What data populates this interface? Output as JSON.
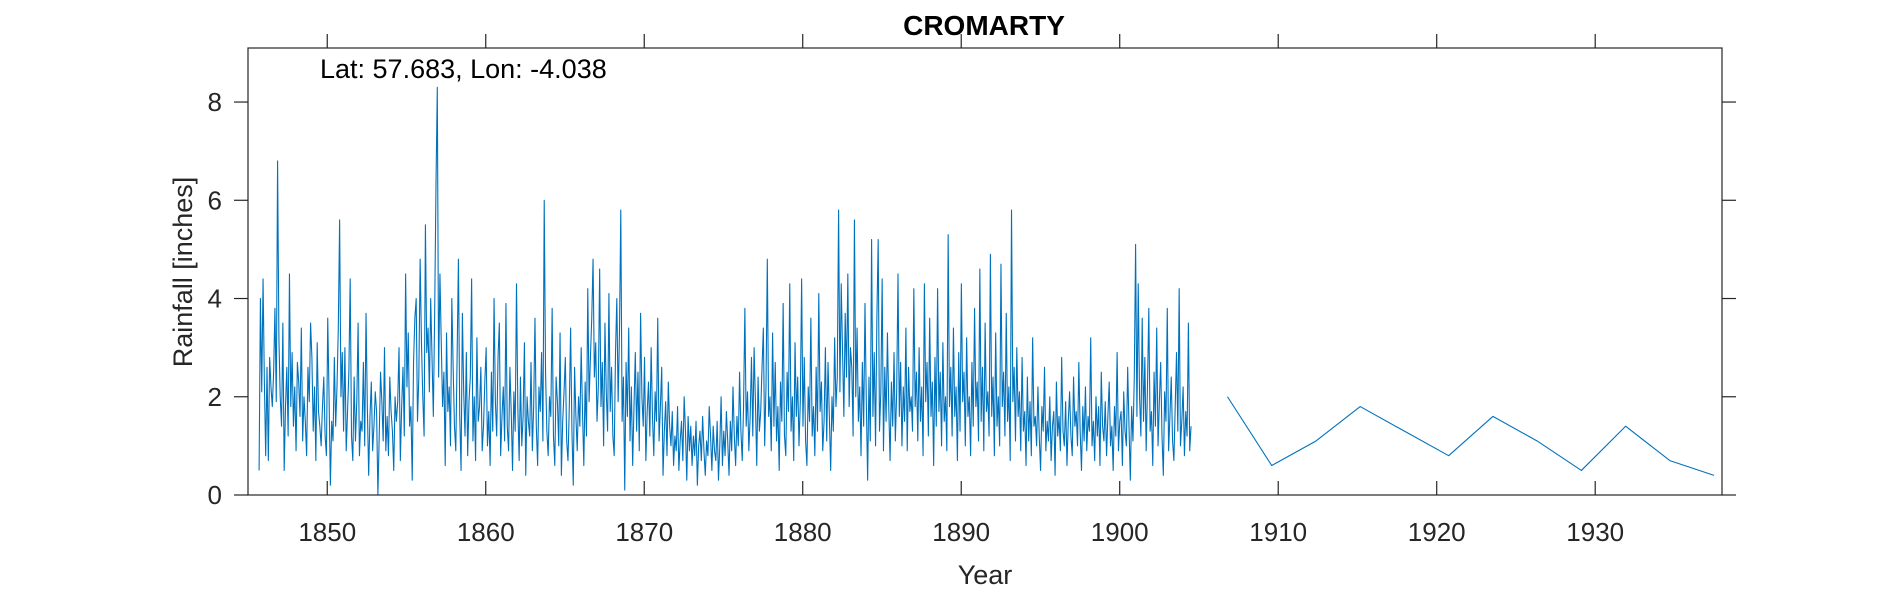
{
  "chart_data": {
    "type": "line",
    "title": "CROMARTY",
    "annotation": "Lat: 57.683, Lon: -4.038",
    "xlabel": "Year",
    "ylabel": "Rainfall [inches]",
    "xlim": [
      1845,
      1938
    ],
    "ylim": [
      0,
      9.1
    ],
    "xticks": [
      1850,
      1860,
      1870,
      1880,
      1890,
      1900,
      1910,
      1920,
      1930
    ],
    "yticks": [
      0,
      2,
      4,
      6,
      8
    ],
    "grid": false,
    "line_color": "#0072BD",
    "series": [
      {
        "frequency": "monthly",
        "gap": [
          1904.5,
          1906.8
        ],
        "values": [
          0.5,
          4.0,
          2.1,
          4.4,
          2.3,
          0.8,
          2.6,
          0.7,
          2.8,
          2.2,
          1.8,
          2.5,
          3.8,
          1.9,
          6.8,
          3.2,
          2.0,
          1.4,
          3.5,
          0.5,
          1.8,
          2.6,
          1.2,
          4.5,
          1.8,
          2.9,
          1.4,
          2.2,
          0.9,
          2.7,
          2.3,
          1.6,
          3.4,
          1.1,
          2.0,
          1.5,
          0.8,
          2.6,
          1.9,
          3.5,
          2.8,
          1.3,
          2.2,
          0.7,
          3.1,
          1.7,
          1.4,
          1.0,
          1.8,
          2.4,
          1.2,
          0.8,
          3.6,
          2.0,
          0.2,
          1.5,
          1.1,
          2.8,
          1.4,
          2.2,
          3.4,
          5.6,
          2.0,
          2.9,
          1.3,
          3.0,
          0.9,
          1.7,
          2.5,
          4.4,
          1.2,
          0.7,
          2.4,
          1.1,
          1.9,
          3.5,
          0.8,
          1.5,
          1.3,
          2.7,
          1.0,
          3.7,
          1.8,
          0.4,
          1.6,
          2.3,
          0.9,
          1.4,
          2.1,
          1.7,
          0.0,
          1.2,
          2.5,
          1.9,
          1.1,
          3.0,
          0.9,
          1.6,
          0.8,
          2.4,
          1.7,
          1.3,
          0.5,
          2.0,
          1.5,
          1.9,
          3.0,
          0.7,
          1.8,
          2.6,
          1.2,
          4.5,
          2.2,
          3.3,
          1.4,
          1.8,
          0.3,
          2.7,
          3.6,
          4.0,
          1.5,
          2.4,
          4.8,
          3.1,
          2.0,
          1.2,
          5.5,
          2.9,
          3.4,
          2.1,
          4.0,
          2.8,
          1.6,
          3.7,
          6.3,
          8.3,
          2.4,
          4.5,
          3.1,
          1.8,
          2.5,
          0.6,
          3.3,
          1.7,
          2.2,
          1.0,
          4.0,
          2.6,
          1.4,
          0.9,
          2.8,
          4.8,
          1.6,
          0.5,
          3.7,
          2.1,
          1.2,
          2.9,
          0.8,
          1.9,
          2.4,
          4.4,
          1.1,
          2.0,
          0.7,
          3.2,
          1.5,
          1.8,
          2.6,
          0.9,
          1.4,
          2.3,
          3.0,
          1.0,
          1.7,
          0.6,
          2.5,
          1.3,
          4.0,
          1.9,
          1.2,
          2.8,
          3.5,
          0.8,
          1.6,
          2.2,
          1.1,
          3.9,
          1.4,
          0.9,
          2.6,
          1.7,
          0.5,
          2.1,
          1.3,
          4.3,
          1.8,
          0.7,
          2.4,
          1.0,
          1.6,
          3.1,
          0.4,
          2.0,
          1.5,
          1.2,
          2.7,
          0.9,
          1.8,
          3.6,
          1.4,
          0.6,
          2.2,
          1.7,
          2.9,
          1.1,
          6.0,
          2.5,
          1.3,
          0.8,
          2.0,
          1.6,
          3.8,
          1.2,
          0.6,
          2.4,
          1.9,
          1.0,
          3.3,
          0.4,
          1.5,
          2.1,
          2.8,
          1.1,
          0.7,
          1.8,
          3.4,
          1.3,
          0.2,
          2.6,
          1.6,
          0.9,
          2.0,
          1.4,
          3.0,
          1.7,
          0.6,
          2.3,
          1.2,
          4.2,
          1.9,
          2.8,
          3.6,
          4.8,
          2.4,
          3.1,
          1.5,
          2.2,
          4.6,
          1.8,
          2.7,
          1.0,
          3.5,
          2.1,
          1.3,
          4.1,
          1.7,
          2.6,
          1.2,
          0.8,
          2.9,
          4.0,
          1.9,
          3.3,
          5.8,
          1.5,
          2.4,
          0.1,
          2.7,
          1.6,
          3.4,
          1.1,
          2.2,
          0.6,
          1.8,
          2.9,
          1.3,
          2.5,
          0.9,
          3.7,
          2.0,
          1.4,
          2.8,
          0.7,
          1.7,
          2.3,
          1.2,
          3.0,
          1.6,
          0.8,
          2.1,
          1.5,
          3.6,
          1.1,
          1.8,
          2.6,
          0.4,
          1.3,
          1.9,
          0.8,
          2.3,
          1.4,
          1.0,
          1.7,
          0.6,
          1.2,
          0.9,
          1.8,
          0.5,
          1.1,
          1.5,
          0.7,
          2.0,
          1.3,
          0.3,
          1.6,
          0.9,
          1.4,
          0.6,
          1.2,
          0.8,
          1.5,
          0.2,
          1.0,
          1.3,
          0.7,
          1.6,
          0.9,
          0.4,
          1.1,
          0.8,
          1.8,
          1.2,
          0.5,
          1.4,
          0.9,
          0.7,
          1.5,
          0.3,
          1.0,
          2.0,
          0.6,
          1.3,
          0.8,
          1.7,
          1.1,
          0.4,
          1.5,
          0.9,
          2.2,
          1.2,
          0.6,
          1.6,
          1.0,
          2.5,
          1.3,
          0.7,
          1.8,
          3.8,
          1.4,
          2.1,
          0.9,
          1.6,
          2.8,
          1.2,
          3.0,
          1.9,
          0.6,
          2.4,
          1.3,
          1.7,
          2.6,
          3.4,
          1.0,
          2.2,
          4.8,
          1.6,
          2.0,
          0.9,
          3.3,
          1.4,
          2.7,
          1.1,
          1.8,
          0.5,
          2.3,
          1.5,
          3.9,
          1.2,
          0.8,
          2.5,
          1.7,
          4.3,
          1.3,
          2.0,
          0.7,
          3.1,
          1.6,
          2.4,
          1.0,
          1.9,
          4.4,
          1.4,
          2.8,
          1.1,
          0.6,
          2.2,
          1.5,
          3.6,
          1.2,
          1.8,
          0.8,
          2.6,
          1.3,
          4.1,
          1.7,
          2.3,
          0.9,
          1.5,
          3.0,
          1.1,
          2.7,
          1.6,
          0.5,
          2.0,
          1.3,
          3.2,
          1.8,
          2.4,
          5.8,
          2.1,
          4.3,
          2.9,
          1.6,
          3.7,
          2.4,
          4.5,
          1.8,
          3.0,
          2.6,
          1.2,
          5.6,
          2.0,
          3.4,
          1.5,
          2.2,
          0.8,
          2.7,
          1.4,
          3.9,
          1.9,
          0.3,
          2.4,
          1.1,
          5.2,
          1.6,
          2.9,
          1.0,
          3.6,
          5.2,
          1.3,
          2.1,
          4.4,
          0.9,
          2.6,
          1.5,
          3.3,
          1.8,
          0.7,
          2.3,
          1.4,
          2.9,
          1.1,
          2.1,
          4.5,
          1.6,
          2.7,
          1.0,
          2.2,
          1.5,
          3.4,
          0.9,
          2.6,
          1.7,
          2.0,
          1.3,
          4.2,
          1.8,
          2.5,
          1.1,
          3.0,
          1.5,
          2.2,
          0.8,
          4.3,
          1.9,
          2.7,
          1.2,
          3.6,
          1.6,
          2.3,
          0.6,
          2.8,
          1.4,
          4.2,
          1.7,
          2.5,
          1.0,
          3.1,
          1.5,
          2.0,
          0.9,
          5.3,
          1.8,
          2.6,
          1.2,
          3.4,
          1.6,
          2.2,
          0.7,
          2.9,
          1.3,
          4.3,
          1.9,
          2.5,
          1.0,
          3.2,
          1.6,
          2.0,
          0.8,
          2.7,
          1.4,
          3.8,
          1.8,
          2.3,
          1.1,
          4.6,
          1.5,
          2.6,
          0.9,
          3.5,
          1.7,
          2.1,
          1.2,
          4.9,
          1.6,
          2.4,
          0.8,
          3.3,
          1.4,
          2.0,
          1.0,
          4.7,
          1.8,
          2.5,
          1.2,
          3.7,
          1.5,
          2.2,
          0.7,
          5.8,
          1.9,
          2.6,
          1.1,
          3.0,
          1.6,
          2.1,
          0.9,
          2.8,
          1.3,
          1.7,
          0.6,
          2.4,
          1.1,
          1.9,
          0.8,
          3.2,
          1.4,
          1.6,
          1.0,
          2.2,
          1.2,
          0.5,
          1.8,
          1.3,
          2.6,
          0.9,
          1.5,
          1.1,
          2.0,
          0.7,
          1.4,
          1.7,
          0.4,
          2.3,
          1.2,
          1.6,
          0.9,
          2.8,
          1.3,
          1.0,
          1.9,
          0.6,
          1.5,
          2.1,
          1.2,
          0.8,
          2.4,
          1.4,
          1.7,
          1.0,
          2.7,
          1.3,
          0.5,
          1.8,
          1.1,
          2.2,
          0.9,
          1.6,
          1.3,
          3.2,
          1.0,
          1.5,
          0.7,
          2.0,
          1.2,
          1.8,
          0.6,
          2.5,
          1.4,
          1.1,
          1.9,
          0.8,
          1.6,
          2.3,
          1.0,
          1.4,
          0.5,
          1.8,
          1.2,
          2.9,
          0.9,
          1.5,
          1.7,
          0.6,
          2.1,
          1.3,
          1.0,
          2.6,
          1.4,
          0.3,
          1.8,
          1.1,
          2.4,
          5.1,
          1.6,
          4.3,
          2.0,
          1.2,
          3.6,
          1.5,
          2.8,
          0.9,
          2.2,
          3.8,
          1.3,
          1.7,
          0.6,
          2.5,
          1.4,
          3.4,
          1.0,
          1.9,
          2.7,
          1.2,
          0.4,
          2.1,
          1.5,
          3.8,
          0.9,
          1.6,
          2.4,
          1.1,
          0.7,
          1.8,
          2.9,
          1.3,
          4.2,
          1.0,
          1.5,
          2.2,
          0.8,
          1.7,
          1.2,
          3.5,
          0.9,
          1.4,
          2.0,
          0.6,
          1.1,
          1.8,
          1.3,
          0.8,
          1.6,
          1.1,
          0.5,
          1.4,
          0.7,
          0.4
        ]
      }
    ]
  }
}
